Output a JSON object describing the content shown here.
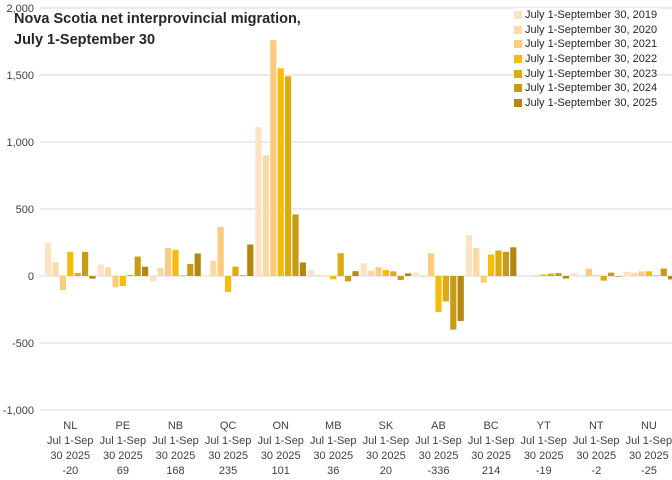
{
  "chart_data": {
    "type": "bar",
    "title": "Nova Scotia net interprovincial migration, July 1-September 30",
    "title_lines": [
      "Nova Scotia net interprovincial migration,",
      "July 1-September 30"
    ],
    "categories": [
      "NL",
      "PE",
      "NB",
      "QC",
      "ON",
      "MB",
      "SK",
      "AB",
      "BC",
      "YT",
      "NT",
      "NU"
    ],
    "category_sub": [
      "Jul 1-Sep",
      "30 2025"
    ],
    "category_values": [
      "-20",
      "69",
      "168",
      "235",
      "101",
      "36",
      "20",
      "-336",
      "214",
      "-19",
      "-2",
      "-25"
    ],
    "series": [
      {
        "name": "July 1-September 30, 2019",
        "color": "#FBE3C3",
        "values": [
          246,
          85,
          -40,
          -5,
          1110,
          45,
          95,
          25,
          305,
          5,
          20,
          30
        ]
      },
      {
        "name": "July 1-September 30, 2020",
        "color": "#FDD9A8",
        "values": [
          104,
          65,
          60,
          115,
          900,
          8,
          40,
          -10,
          210,
          5,
          5,
          25
        ]
      },
      {
        "name": "July 1-September 30, 2021",
        "color": "#FDCB7E",
        "values": [
          -105,
          -85,
          210,
          365,
          1760,
          0,
          65,
          170,
          -50,
          5,
          55,
          35
        ]
      },
      {
        "name": "July 1-September 30, 2022",
        "color": "#F5BD0A",
        "values": [
          180,
          -75,
          195,
          -120,
          1550,
          -25,
          45,
          -270,
          160,
          12,
          5,
          35
        ]
      },
      {
        "name": "July 1-September 30, 2023",
        "color": "#DDAA10",
        "values": [
          22,
          8,
          5,
          70,
          1490,
          170,
          35,
          -190,
          190,
          18,
          -35,
          5
        ]
      },
      {
        "name": "July 1-September 30, 2024",
        "color": "#C99A14",
        "values": [
          180,
          145,
          90,
          5,
          460,
          -40,
          -30,
          -400,
          180,
          22,
          25,
          55
        ]
      },
      {
        "name": "July 1-September 30, 2025",
        "color": "#B38710",
        "values": [
          -20,
          69,
          168,
          235,
          101,
          36,
          20,
          -336,
          214,
          -19,
          -2,
          -25
        ]
      }
    ],
    "ylim": [
      -1000,
      2000
    ],
    "yticks": [
      -1000,
      -500,
      0,
      500,
      1000,
      1500,
      2000
    ],
    "ytick_labels": [
      "-1,000",
      "-500",
      "0",
      "500",
      "1,000",
      "1,500",
      "2,000"
    ],
    "xlabel": "",
    "ylabel": "",
    "grid": true,
    "legend_position": "top-right"
  }
}
